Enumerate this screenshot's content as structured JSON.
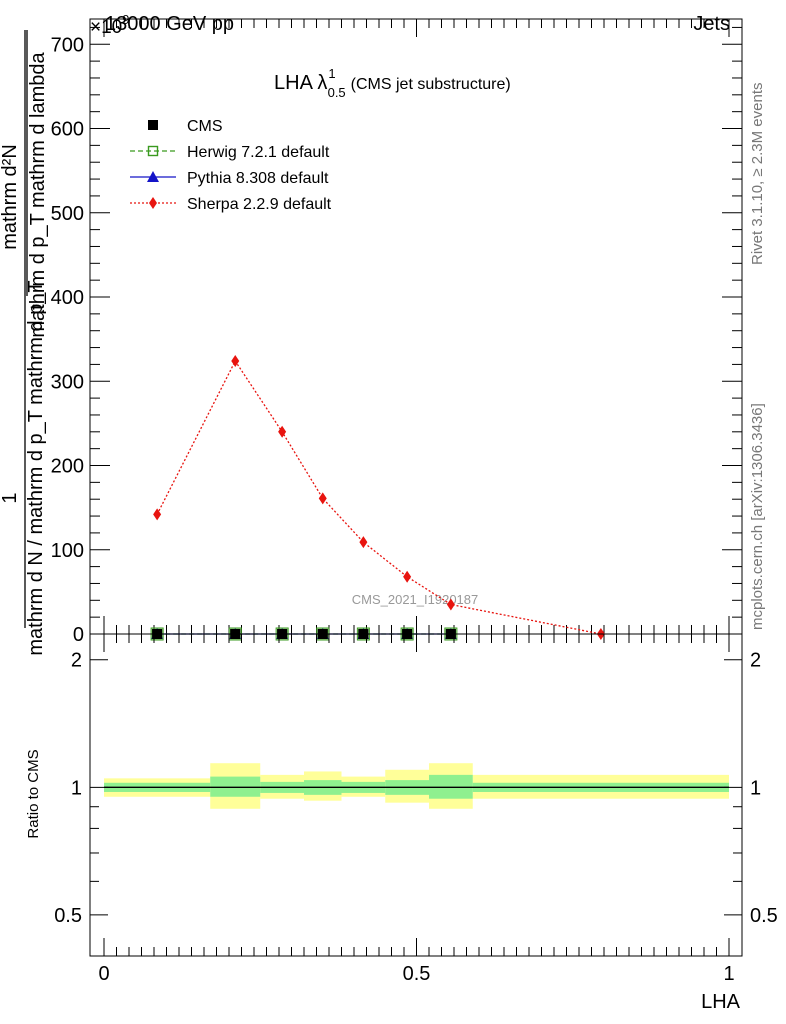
{
  "header": {
    "left_label": "13000 GeV pp",
    "right_label": "Jets",
    "exponent_label": "×10^9"
  },
  "side_labels": {
    "rivet": "Rivet 3.1.10, ≥ 2.3M events",
    "mcplots": "mcplots.cern.ch [arXiv:1306.3436]"
  },
  "colors": {
    "cms": "#000000",
    "herwig": "#3a9a1f",
    "pythia": "#1414c8",
    "sherpa": "#e8140f",
    "band_outer": "#ffff99",
    "band_inner": "#8ff08f"
  },
  "chart_data": [
    {
      "type": "line",
      "title": "LHA λ^1_0.5 (CMS jet substructure)",
      "title_main": "LHA λ",
      "title_sup": "1",
      "title_sub": "0.5",
      "title_note": "(CMS jet substructure)",
      "ylabel": "1 / mathrm d N / mathrm d p_T mathrm d p_T mathrm d^2N / mathrm d p_T mathrm d lambda",
      "ylabel_numerator": "1",
      "ylabel_denominator": "mathrm d N / mathrm d p_T mathrm d p_T",
      "ylabel_fraction_numerator": "mathrm d²N",
      "ylabel_fraction_denominator": "mathrm d p_T mathrm d lambda",
      "xlim": [
        0,
        1
      ],
      "ylim": [
        0,
        730
      ],
      "y_ticks": [
        "0",
        "100",
        "200",
        "300",
        "400",
        "500",
        "600",
        "700"
      ],
      "watermark": "CMS_2021_I1920187",
      "legend_position": "top-left",
      "series": [
        {
          "name": "CMS",
          "marker": "square",
          "x": [
            0.085,
            0.21,
            0.285,
            0.35,
            0.415,
            0.485,
            0.555
          ],
          "values": [
            0,
            0,
            0,
            0,
            0,
            0,
            0
          ]
        },
        {
          "name": "Herwig 7.2.1 default",
          "marker": "open-square",
          "line": "dashed",
          "x": [
            0.085,
            0.21,
            0.285,
            0.35,
            0.415,
            0.485,
            0.555
          ],
          "values": [
            0,
            0,
            0,
            0,
            0,
            0,
            0
          ]
        },
        {
          "name": "Pythia 8.308 default",
          "marker": "triangle",
          "line": "solid",
          "x": [
            0.085,
            0.21,
            0.285,
            0.35,
            0.415,
            0.485,
            0.555
          ],
          "values": [
            0,
            0,
            0,
            0,
            0,
            0,
            0
          ]
        },
        {
          "name": "Sherpa 2.2.9 default",
          "marker": "diamond",
          "line": "dotted",
          "x": [
            0.085,
            0.21,
            0.285,
            0.35,
            0.415,
            0.485,
            0.555,
            0.795
          ],
          "values": [
            142,
            324,
            240,
            161,
            109,
            68,
            35,
            0
          ]
        }
      ]
    },
    {
      "type": "area",
      "title": "",
      "ylabel": "Ratio to CMS",
      "xlabel": "LHA",
      "xlim": [
        0,
        1
      ],
      "ylim": [
        0.4,
        2.3
      ],
      "y_scale": "log",
      "y_ticks": [
        "0.5",
        "1",
        "2"
      ],
      "x_ticks": [
        "0",
        "0.5",
        "1"
      ],
      "reference_line": 1,
      "bins": [
        {
          "x0": 0.0,
          "x1": 0.17,
          "outer": [
            0.95,
            1.05
          ],
          "inner": [
            0.975,
            1.025
          ]
        },
        {
          "x0": 0.17,
          "x1": 0.25,
          "outer": [
            0.89,
            1.14
          ],
          "inner": [
            0.95,
            1.06
          ]
        },
        {
          "x0": 0.25,
          "x1": 0.32,
          "outer": [
            0.94,
            1.07
          ],
          "inner": [
            0.97,
            1.03
          ]
        },
        {
          "x0": 0.32,
          "x1": 0.38,
          "outer": [
            0.93,
            1.09
          ],
          "inner": [
            0.96,
            1.04
          ]
        },
        {
          "x0": 0.38,
          "x1": 0.45,
          "outer": [
            0.95,
            1.06
          ],
          "inner": [
            0.97,
            1.03
          ]
        },
        {
          "x0": 0.45,
          "x1": 0.52,
          "outer": [
            0.92,
            1.1
          ],
          "inner": [
            0.96,
            1.04
          ]
        },
        {
          "x0": 0.52,
          "x1": 0.59,
          "outer": [
            0.89,
            1.14
          ],
          "inner": [
            0.94,
            1.07
          ]
        },
        {
          "x0": 0.59,
          "x1": 1.0,
          "outer": [
            0.94,
            1.07
          ],
          "inner": [
            0.975,
            1.025
          ]
        }
      ]
    }
  ]
}
